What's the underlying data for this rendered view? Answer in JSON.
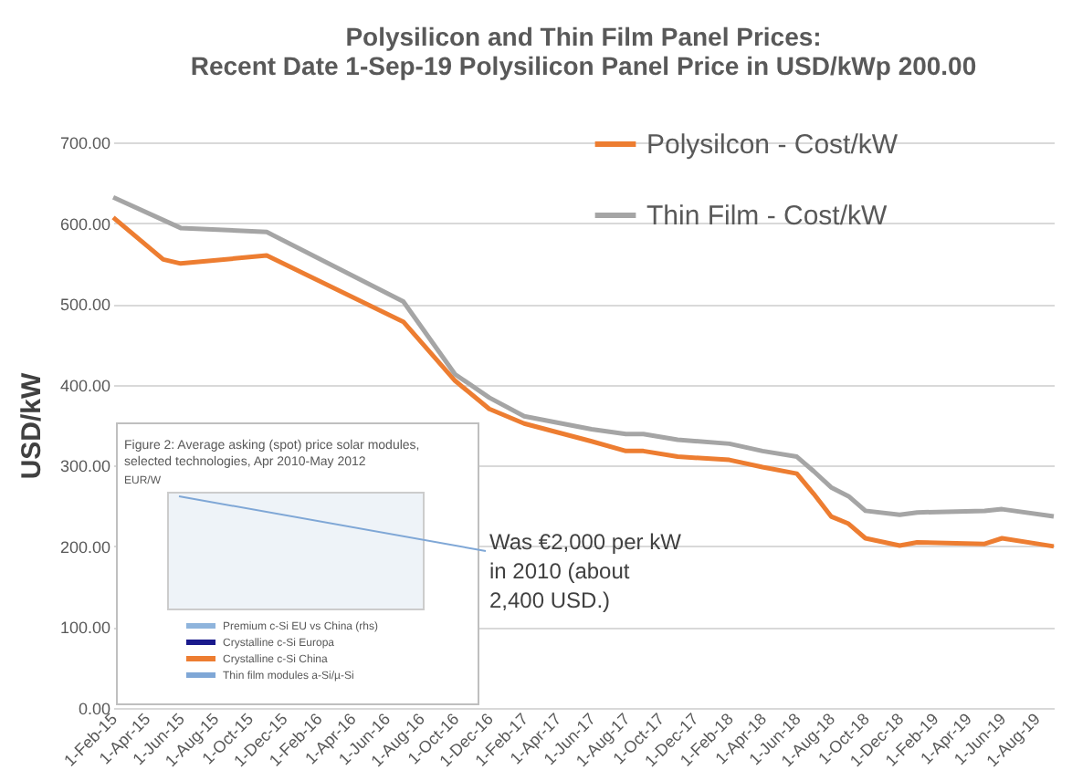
{
  "chart_data": {
    "type": "line",
    "title": "Polysilicon and Thin Film Panel Prices:\nRecent Date 1-Sep-19 Polysilicon Panel Price in USD/kWp 200.00",
    "ylabel": "USD/kW",
    "series": [
      {
        "name": "Polysilcon - Cost/kW",
        "color": "#ed7d31",
        "x": [
          "2015-02",
          "2015-05",
          "2015-06",
          "2015-11",
          "2016-07",
          "2016-10",
          "2016-12",
          "2017-02",
          "2017-06",
          "2017-08",
          "2017-09",
          "2017-11",
          "2018-02",
          "2018-04",
          "2018-06",
          "2018-07",
          "2018-08",
          "2018-09",
          "2018-10",
          "2018-12",
          "2019-01",
          "2019-05",
          "2019-06",
          "2019-09"
        ],
        "values": [
          607,
          555,
          550,
          560,
          478,
          405,
          370,
          352,
          330,
          318,
          318,
          311,
          307,
          298,
          290,
          265,
          237,
          228,
          210,
          201,
          205,
          203,
          210,
          200
        ]
      },
      {
        "name": "Thin Film - Cost/kW",
        "color": "#a5a5a5",
        "x": [
          "2015-02",
          "2015-06",
          "2015-11",
          "2016-07",
          "2016-10",
          "2016-12",
          "2017-02",
          "2017-06",
          "2017-08",
          "2017-09",
          "2017-11",
          "2018-02",
          "2018-04",
          "2018-06",
          "2018-07",
          "2018-08",
          "2018-09",
          "2018-10",
          "2018-12",
          "2019-01",
          "2019-05",
          "2019-06",
          "2019-09"
        ],
        "values": [
          632,
          594,
          589,
          503,
          413,
          384,
          361,
          345,
          339,
          339,
          332,
          327,
          318,
          311,
          293,
          273,
          262,
          244,
          239,
          242,
          244,
          246,
          237
        ]
      }
    ],
    "xlim": [
      "2015-02-01",
      "2019-09-01"
    ],
    "xticks": [
      {
        "value": "2015-02-01",
        "label": "1-Feb-15"
      },
      {
        "value": "2015-04-01",
        "label": "1-Apr-15"
      },
      {
        "value": "2015-06-01",
        "label": "1-Jun-15"
      },
      {
        "value": "2015-08-01",
        "label": "1-Aug-15"
      },
      {
        "value": "2015-10-01",
        "label": "1-Oct-15"
      },
      {
        "value": "2015-12-01",
        "label": "1-Dec-15"
      },
      {
        "value": "2016-02-01",
        "label": "1-Feb-16"
      },
      {
        "value": "2016-04-01",
        "label": "1-Apr-16"
      },
      {
        "value": "2016-06-01",
        "label": "1-Jun-16"
      },
      {
        "value": "2016-08-01",
        "label": "1-Aug-16"
      },
      {
        "value": "2016-10-01",
        "label": "1-Oct-16"
      },
      {
        "value": "2016-12-01",
        "label": "1-Dec-16"
      },
      {
        "value": "2017-02-01",
        "label": "1-Feb-17"
      },
      {
        "value": "2017-04-01",
        "label": "1-Apr-17"
      },
      {
        "value": "2017-06-01",
        "label": "1-Jun-17"
      },
      {
        "value": "2017-08-01",
        "label": "1-Aug-17"
      },
      {
        "value": "2017-10-01",
        "label": "1-Oct-17"
      },
      {
        "value": "2017-12-01",
        "label": "1-Dec-17"
      },
      {
        "value": "2018-02-01",
        "label": "1-Feb-18"
      },
      {
        "value": "2018-04-01",
        "label": "1-Apr-18"
      },
      {
        "value": "2018-06-01",
        "label": "1-Jun-18"
      },
      {
        "value": "2018-08-01",
        "label": "1-Aug-18"
      },
      {
        "value": "2018-10-01",
        "label": "1-Oct-18"
      },
      {
        "value": "2018-12-01",
        "label": "1-Dec-18"
      },
      {
        "value": "2019-02-01",
        "label": "1-Feb-19"
      },
      {
        "value": "2019-04-01",
        "label": "1-Apr-19"
      },
      {
        "value": "2019-06-01",
        "label": "1-Jun-19"
      },
      {
        "value": "2019-08-01",
        "label": "1-Aug-19"
      }
    ],
    "ylim": [
      0,
      700
    ],
    "yticks": [
      {
        "value": 0,
        "label": "0.00"
      },
      {
        "value": 100,
        "label": "100.00"
      },
      {
        "value": 200,
        "label": "200.00"
      },
      {
        "value": 300,
        "label": "300.00"
      },
      {
        "value": 400,
        "label": "400.00"
      },
      {
        "value": 500,
        "label": "500.00"
      },
      {
        "value": 600,
        "label": "600.00"
      },
      {
        "value": 700,
        "label": "700.00"
      }
    ],
    "grid": "y",
    "legend": "top right",
    "marker": "none",
    "line_style": "solid",
    "annotations": [
      "Was €2,000 per kW\nin 2010 (about\n2,400 USD.)",
      "Figure 2: Average asking (spot) price solar modules,\nselected technologies, Apr 2010-May 2012",
      "EUR/W",
      "Premium c-Si EU vs China (rhs)",
      "Crystalline c-Si Europa",
      "Crystalline c-Si China",
      "Thin film modules a-Si/µ-Si"
    ]
  }
}
